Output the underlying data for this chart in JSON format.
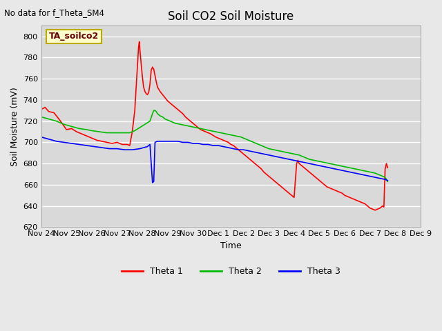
{
  "title": "Soil CO2 Soil Moisture",
  "ylabel": "Soil Moisture (mV)",
  "xlabel": "Time",
  "no_data_text": "No data for f_Theta_SM4",
  "annotation_box_text": "TA_soilco2",
  "ylim": [
    620,
    810
  ],
  "xlim": [
    0,
    15
  ],
  "background_color": "#e8e8e8",
  "plot_bg_color": "#d9d9d9",
  "x_tick_labels": [
    "Nov 24",
    "Nov 25",
    "Nov 26",
    "Nov 27",
    "Nov 28",
    "Nov 29",
    "Nov 30",
    "Dec 1",
    "Dec 2",
    "Dec 3",
    "Dec 4",
    "Dec 5",
    "Dec 6",
    "Dec 7",
    "Dec 8",
    "Dec 9"
  ],
  "series": {
    "theta1": {
      "color": "#ff0000",
      "label": "Theta 1",
      "points": [
        [
          0.0,
          731
        ],
        [
          0.15,
          733
        ],
        [
          0.3,
          729
        ],
        [
          0.5,
          728
        ],
        [
          0.7,
          722
        ],
        [
          1.0,
          712
        ],
        [
          1.2,
          713
        ],
        [
          1.4,
          710
        ],
        [
          1.6,
          708
        ],
        [
          1.8,
          706
        ],
        [
          2.0,
          704
        ],
        [
          2.2,
          702
        ],
        [
          2.4,
          701
        ],
        [
          2.6,
          700
        ],
        [
          2.8,
          699
        ],
        [
          3.0,
          700
        ],
        [
          3.1,
          699
        ],
        [
          3.2,
          698
        ],
        [
          3.4,
          698
        ],
        [
          3.5,
          697
        ],
        [
          3.6,
          710
        ],
        [
          3.7,
          730
        ],
        [
          3.75,
          750
        ],
        [
          3.8,
          770
        ],
        [
          3.85,
          790
        ],
        [
          3.88,
          795
        ],
        [
          3.9,
          788
        ],
        [
          3.95,
          775
        ],
        [
          4.0,
          762
        ],
        [
          4.05,
          752
        ],
        [
          4.1,
          748
        ],
        [
          4.15,
          746
        ],
        [
          4.2,
          745
        ],
        [
          4.25,
          747
        ],
        [
          4.3,
          755
        ],
        [
          4.35,
          768
        ],
        [
          4.4,
          771
        ],
        [
          4.45,
          769
        ],
        [
          4.5,
          763
        ],
        [
          4.55,
          757
        ],
        [
          4.6,
          752
        ],
        [
          4.7,
          748
        ],
        [
          4.8,
          745
        ],
        [
          4.9,
          742
        ],
        [
          5.0,
          739
        ],
        [
          5.1,
          737
        ],
        [
          5.2,
          735
        ],
        [
          5.3,
          733
        ],
        [
          5.4,
          731
        ],
        [
          5.5,
          729
        ],
        [
          5.6,
          727
        ],
        [
          5.7,
          724
        ],
        [
          5.8,
          722
        ],
        [
          5.9,
          720
        ],
        [
          6.0,
          718
        ],
        [
          6.1,
          716
        ],
        [
          6.2,
          714
        ],
        [
          6.3,
          712
        ],
        [
          6.5,
          710
        ],
        [
          6.7,
          708
        ],
        [
          6.9,
          705
        ],
        [
          7.0,
          704
        ],
        [
          7.2,
          702
        ],
        [
          7.4,
          700
        ],
        [
          7.5,
          698
        ],
        [
          7.6,
          697
        ],
        [
          7.7,
          695
        ],
        [
          7.8,
          693
        ],
        [
          7.9,
          691
        ],
        [
          8.0,
          689
        ],
        [
          8.1,
          687
        ],
        [
          8.2,
          685
        ],
        [
          8.3,
          683
        ],
        [
          8.4,
          681
        ],
        [
          8.5,
          679
        ],
        [
          8.6,
          677
        ],
        [
          8.7,
          675
        ],
        [
          8.8,
          672
        ],
        [
          8.9,
          670
        ],
        [
          9.0,
          668
        ],
        [
          9.1,
          666
        ],
        [
          9.2,
          664
        ],
        [
          9.3,
          662
        ],
        [
          9.4,
          660
        ],
        [
          9.5,
          658
        ],
        [
          9.6,
          656
        ],
        [
          9.7,
          654
        ],
        [
          9.8,
          652
        ],
        [
          9.9,
          650
        ],
        [
          10.0,
          648
        ],
        [
          10.1,
          680
        ],
        [
          10.15,
          683
        ],
        [
          10.2,
          680
        ],
        [
          10.3,
          678
        ],
        [
          10.4,
          676
        ],
        [
          10.5,
          674
        ],
        [
          10.6,
          672
        ],
        [
          10.7,
          670
        ],
        [
          10.8,
          668
        ],
        [
          10.9,
          666
        ],
        [
          11.0,
          664
        ],
        [
          11.1,
          662
        ],
        [
          11.2,
          660
        ],
        [
          11.3,
          658
        ],
        [
          11.5,
          656
        ],
        [
          11.7,
          654
        ],
        [
          11.9,
          652
        ],
        [
          12.0,
          650
        ],
        [
          12.2,
          648
        ],
        [
          12.4,
          646
        ],
        [
          12.6,
          644
        ],
        [
          12.8,
          642
        ],
        [
          12.9,
          640
        ],
        [
          13.0,
          638
        ],
        [
          13.1,
          637
        ],
        [
          13.2,
          636
        ],
        [
          13.3,
          637
        ],
        [
          13.4,
          638
        ],
        [
          13.5,
          640
        ],
        [
          13.55,
          639
        ],
        [
          13.6,
          675
        ],
        [
          13.65,
          680
        ],
        [
          13.7,
          676
        ]
      ]
    },
    "theta2": {
      "color": "#00bb00",
      "label": "Theta 2",
      "points": [
        [
          0.0,
          724
        ],
        [
          0.3,
          722
        ],
        [
          0.6,
          720
        ],
        [
          0.9,
          717
        ],
        [
          1.2,
          715
        ],
        [
          1.5,
          713
        ],
        [
          1.8,
          712
        ],
        [
          2.0,
          711
        ],
        [
          2.3,
          710
        ],
        [
          2.6,
          709
        ],
        [
          2.9,
          709
        ],
        [
          3.2,
          709
        ],
        [
          3.5,
          709
        ],
        [
          3.7,
          711
        ],
        [
          3.9,
          714
        ],
        [
          4.1,
          717
        ],
        [
          4.3,
          720
        ],
        [
          4.4,
          727
        ],
        [
          4.45,
          730
        ],
        [
          4.5,
          730
        ],
        [
          4.55,
          729
        ],
        [
          4.6,
          727
        ],
        [
          4.7,
          725
        ],
        [
          4.8,
          724
        ],
        [
          4.9,
          722
        ],
        [
          5.0,
          721
        ],
        [
          5.1,
          720
        ],
        [
          5.2,
          719
        ],
        [
          5.3,
          718
        ],
        [
          5.5,
          717
        ],
        [
          5.7,
          716
        ],
        [
          5.9,
          715
        ],
        [
          6.1,
          714
        ],
        [
          6.3,
          713
        ],
        [
          6.5,
          712
        ],
        [
          6.7,
          711
        ],
        [
          6.9,
          710
        ],
        [
          7.1,
          709
        ],
        [
          7.3,
          708
        ],
        [
          7.5,
          707
        ],
        [
          7.7,
          706
        ],
        [
          7.9,
          705
        ],
        [
          8.0,
          704
        ],
        [
          8.2,
          702
        ],
        [
          8.4,
          700
        ],
        [
          8.6,
          698
        ],
        [
          8.8,
          696
        ],
        [
          9.0,
          694
        ],
        [
          9.2,
          693
        ],
        [
          9.4,
          692
        ],
        [
          9.6,
          691
        ],
        [
          9.8,
          690
        ],
        [
          10.0,
          689
        ],
        [
          10.2,
          688
        ],
        [
          10.4,
          686
        ],
        [
          10.6,
          684
        ],
        [
          10.8,
          683
        ],
        [
          11.0,
          682
        ],
        [
          11.2,
          681
        ],
        [
          11.4,
          680
        ],
        [
          11.6,
          679
        ],
        [
          11.8,
          678
        ],
        [
          12.0,
          677
        ],
        [
          12.2,
          676
        ],
        [
          12.4,
          675
        ],
        [
          12.6,
          674
        ],
        [
          12.8,
          673
        ],
        [
          13.0,
          672
        ],
        [
          13.2,
          671
        ],
        [
          13.4,
          669
        ],
        [
          13.6,
          667
        ],
        [
          13.65,
          665
        ],
        [
          13.7,
          663
        ]
      ]
    },
    "theta3": {
      "color": "#0000ff",
      "label": "Theta 3",
      "points": [
        [
          0.0,
          705
        ],
        [
          0.3,
          703
        ],
        [
          0.6,
          701
        ],
        [
          0.9,
          700
        ],
        [
          1.2,
          699
        ],
        [
          1.5,
          698
        ],
        [
          1.8,
          697
        ],
        [
          2.1,
          696
        ],
        [
          2.4,
          695
        ],
        [
          2.7,
          694
        ],
        [
          3.0,
          694
        ],
        [
          3.3,
          693
        ],
        [
          3.6,
          693
        ],
        [
          3.9,
          694
        ],
        [
          4.2,
          696
        ],
        [
          4.3,
          698
        ],
        [
          4.4,
          662
        ],
        [
          4.45,
          663
        ],
        [
          4.5,
          700
        ],
        [
          4.6,
          701
        ],
        [
          4.7,
          701
        ],
        [
          4.8,
          701
        ],
        [
          5.0,
          701
        ],
        [
          5.2,
          701
        ],
        [
          5.4,
          701
        ],
        [
          5.6,
          700
        ],
        [
          5.8,
          700
        ],
        [
          6.0,
          699
        ],
        [
          6.2,
          699
        ],
        [
          6.4,
          698
        ],
        [
          6.6,
          698
        ],
        [
          6.8,
          697
        ],
        [
          7.0,
          697
        ],
        [
          7.2,
          696
        ],
        [
          7.4,
          695
        ],
        [
          7.6,
          694
        ],
        [
          7.8,
          693
        ],
        [
          8.0,
          693
        ],
        [
          8.2,
          692
        ],
        [
          8.4,
          691
        ],
        [
          8.6,
          690
        ],
        [
          8.8,
          689
        ],
        [
          9.0,
          688
        ],
        [
          9.2,
          687
        ],
        [
          9.4,
          686
        ],
        [
          9.6,
          685
        ],
        [
          9.8,
          684
        ],
        [
          10.0,
          683
        ],
        [
          10.2,
          682
        ],
        [
          10.4,
          681
        ],
        [
          10.6,
          680
        ],
        [
          10.8,
          679
        ],
        [
          11.0,
          678
        ],
        [
          11.2,
          677
        ],
        [
          11.4,
          676
        ],
        [
          11.6,
          675
        ],
        [
          11.8,
          674
        ],
        [
          12.0,
          673
        ],
        [
          12.2,
          672
        ],
        [
          12.4,
          671
        ],
        [
          12.6,
          670
        ],
        [
          12.8,
          669
        ],
        [
          13.0,
          668
        ],
        [
          13.2,
          667
        ],
        [
          13.4,
          666
        ],
        [
          13.6,
          665
        ],
        [
          13.7,
          664
        ]
      ]
    }
  }
}
